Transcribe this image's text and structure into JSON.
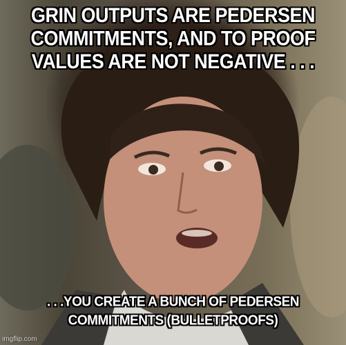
{
  "meme": {
    "top_text": "GRIN OUTPUTS ARE PEDERSEN COMMITMENTS, AND TO PROOF VALUES ARE NOT NEGATIVE . . .",
    "bottom_text": ". . .YOU CREATE A BUNCH OF PEDERSEN COMMITMENTS (BULLETPROOFS)",
    "watermark": "imgflip.com"
  }
}
